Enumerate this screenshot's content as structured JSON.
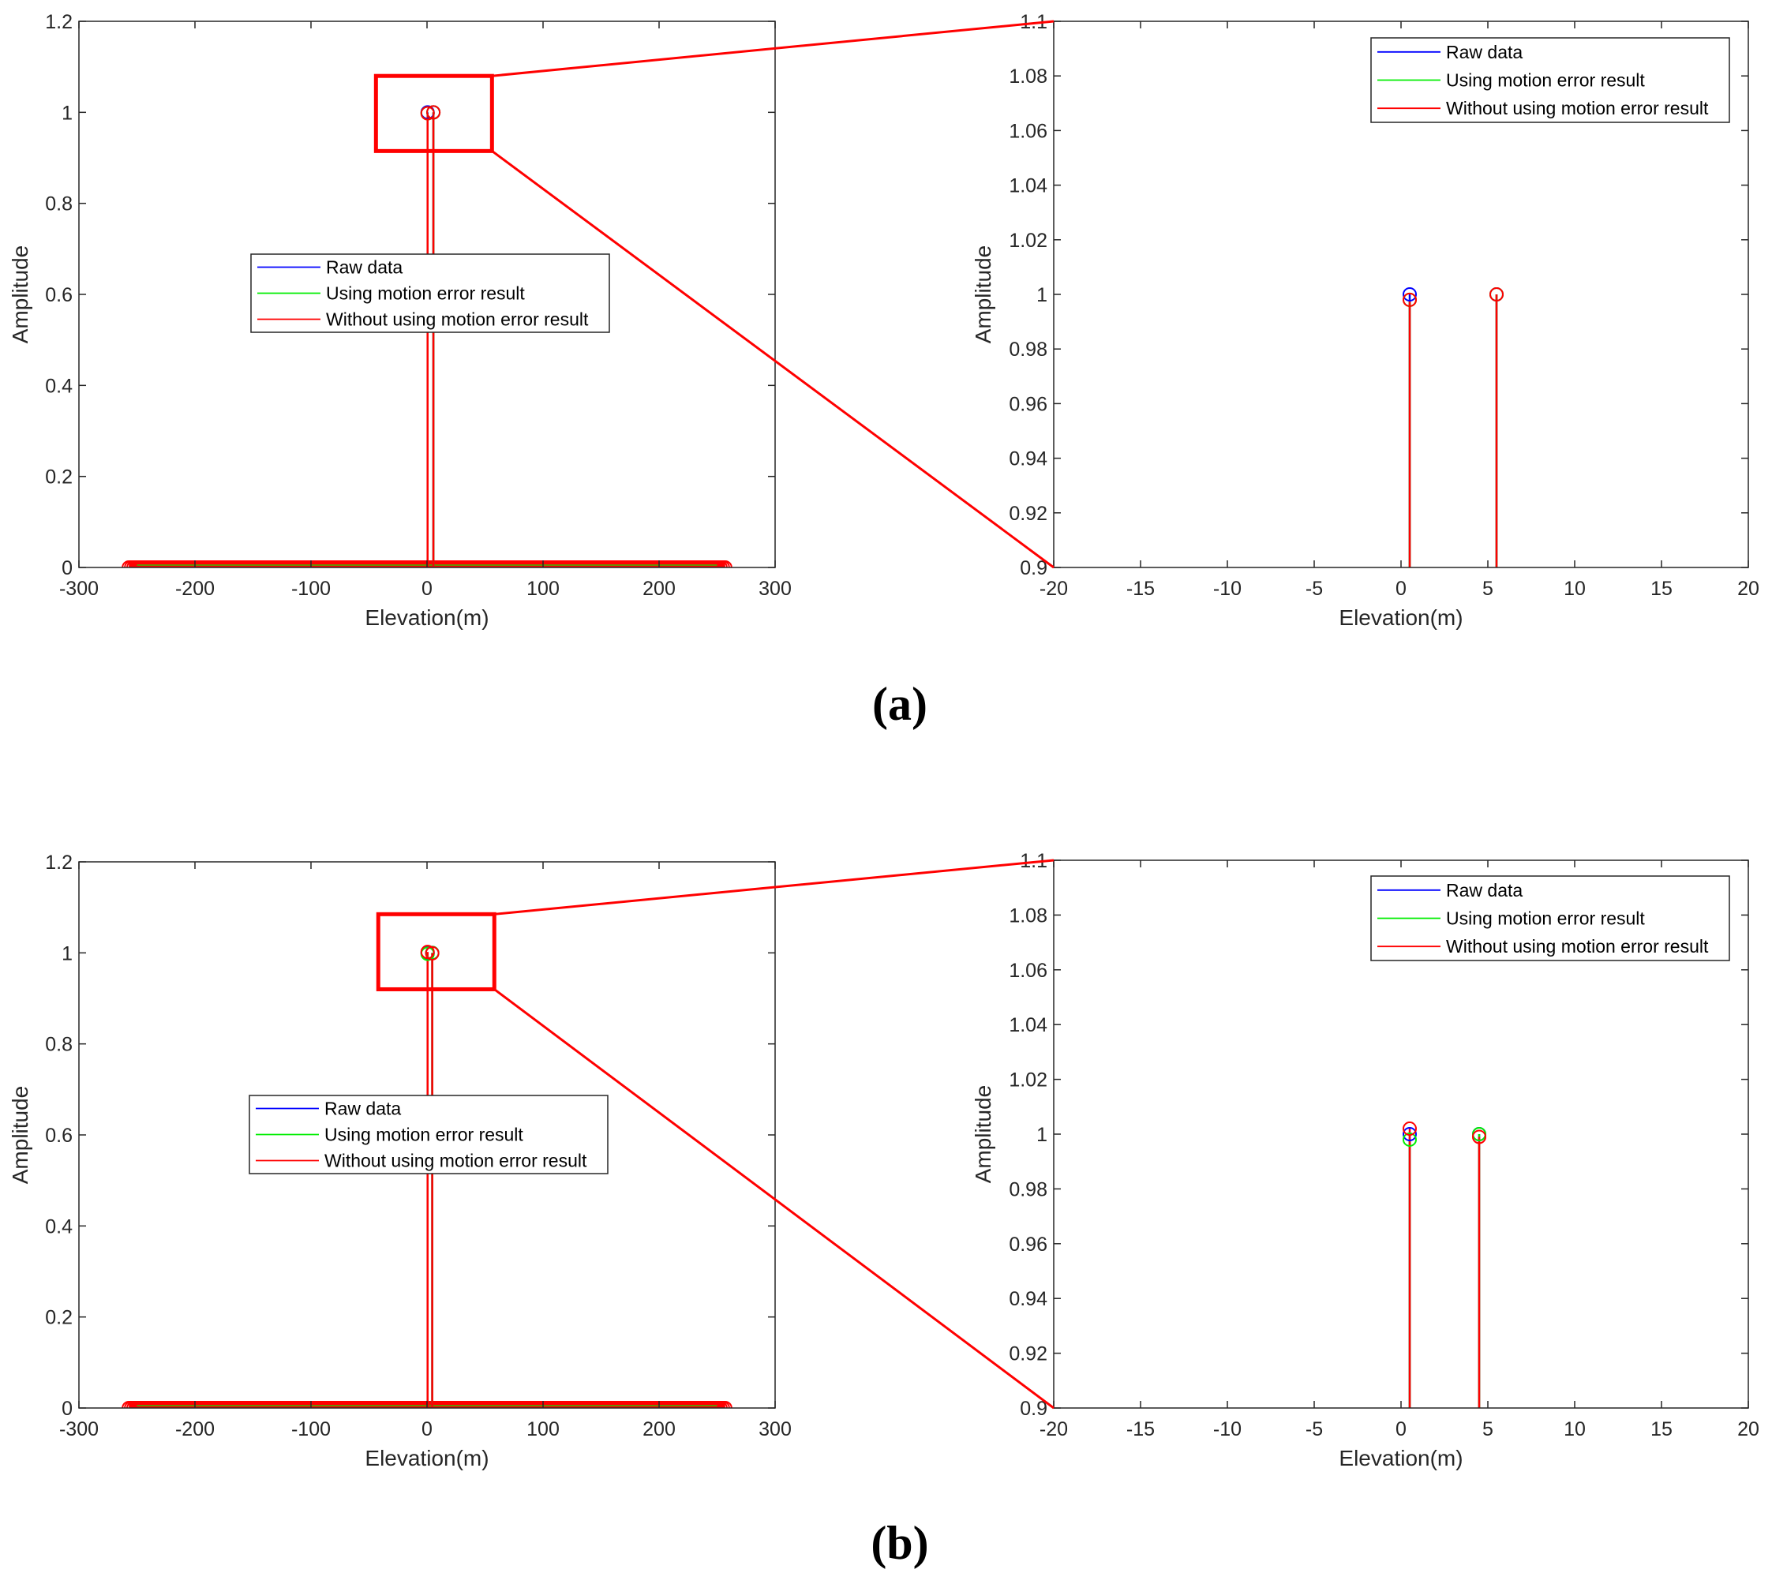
{
  "panel_labels": [
    "(a)",
    "(b)"
  ],
  "colors": {
    "raw": "#0000ff",
    "using": "#00ee00",
    "without": "#ff0000",
    "axis": "#262626",
    "zoom": "#ff0000"
  },
  "chart_data": [
    {
      "panel": "(a)",
      "type": "line",
      "plot": "full",
      "xlabel": "Elevation(m)",
      "ylabel": "Amplitude",
      "xlim": [
        -300,
        300
      ],
      "ylim": [
        0,
        1.2
      ],
      "xticks": [
        "-300",
        "-200",
        "-100",
        "0",
        "100",
        "200",
        "300"
      ],
      "yticks": [
        "0",
        "0.2",
        "0.4",
        "0.6",
        "0.8",
        "1",
        "1.2"
      ],
      "grid": false,
      "legend": "center-left",
      "series": [
        {
          "name": "Raw data",
          "peaks": [
            {
              "x": 0.5,
              "y": 1.0
            },
            {
              "x": 5.5,
              "y": 1.0
            }
          ]
        },
        {
          "name": "Using motion error result",
          "peaks": [
            {
              "x": 0.5,
              "y": 0.998
            },
            {
              "x": 5.5,
              "y": 1.0
            }
          ]
        },
        {
          "name": "Without using motion error result",
          "peaks": [
            {
              "x": 0.5,
              "y": 0.998
            },
            {
              "x": 5.5,
              "y": 1.0
            }
          ]
        }
      ],
      "baseline_markers": {
        "x_range": [
          -257,
          257
        ],
        "y": 0
      },
      "zoom_box": {
        "x": [
          -44,
          56
        ],
        "y": [
          0.915,
          1.08
        ]
      }
    },
    {
      "panel": "(a)",
      "type": "line",
      "plot": "zoom",
      "xlabel": "Elevation(m)",
      "ylabel": "Amplitude",
      "xlim": [
        -20,
        20
      ],
      "ylim": [
        0.9,
        1.1
      ],
      "xticks": [
        "-20",
        "-15",
        "-10",
        "-5",
        "0",
        "5",
        "10",
        "15",
        "20"
      ],
      "yticks": [
        "0.9",
        "0.92",
        "0.94",
        "0.96",
        "0.98",
        "1",
        "1.02",
        "1.04",
        "1.06",
        "1.08",
        "1.1"
      ],
      "grid": false,
      "legend": "top-right",
      "series": [
        {
          "name": "Raw data",
          "peaks": [
            {
              "x": 0.5,
              "y": 1.0
            },
            {
              "x": 5.5,
              "y": 1.0
            }
          ]
        },
        {
          "name": "Using motion error result",
          "peaks": [
            {
              "x": 0.5,
              "y": 0.998
            },
            {
              "x": 5.5,
              "y": 1.0
            }
          ]
        },
        {
          "name": "Without using motion error result",
          "peaks": [
            {
              "x": 0.5,
              "y": 0.998
            },
            {
              "x": 5.5,
              "y": 1.0
            }
          ]
        }
      ]
    },
    {
      "panel": "(b)",
      "type": "line",
      "plot": "full",
      "xlabel": "Elevation(m)",
      "ylabel": "Amplitude",
      "xlim": [
        -300,
        300
      ],
      "ylim": [
        0,
        1.2
      ],
      "xticks": [
        "-300",
        "-200",
        "-100",
        "0",
        "100",
        "200",
        "300"
      ],
      "yticks": [
        "0",
        "0.2",
        "0.4",
        "0.6",
        "0.8",
        "1",
        "1.2"
      ],
      "grid": false,
      "legend": "center-left",
      "series": [
        {
          "name": "Raw data",
          "peaks": [
            {
              "x": 0.5,
              "y": 1.0
            },
            {
              "x": 4.5,
              "y": 1.0
            }
          ]
        },
        {
          "name": "Using motion error result",
          "peaks": [
            {
              "x": 0.5,
              "y": 0.998
            },
            {
              "x": 4.5,
              "y": 1.0
            }
          ]
        },
        {
          "name": "Without using motion error result",
          "peaks": [
            {
              "x": 0.5,
              "y": 1.002
            },
            {
              "x": 4.5,
              "y": 0.999
            }
          ]
        }
      ],
      "baseline_markers": {
        "x_range": [
          -257,
          257
        ],
        "y": 0
      },
      "zoom_box": {
        "x": [
          -42,
          58
        ],
        "y": [
          0.92,
          1.085
        ]
      }
    },
    {
      "panel": "(b)",
      "type": "line",
      "plot": "zoom",
      "xlabel": "Elevation(m)",
      "ylabel": "Amplitude",
      "xlim": [
        -20,
        20
      ],
      "ylim": [
        0.9,
        1.1
      ],
      "xticks": [
        "-20",
        "-15",
        "-10",
        "-5",
        "0",
        "5",
        "10",
        "15",
        "20"
      ],
      "yticks": [
        "0.9",
        "0.92",
        "0.94",
        "0.96",
        "0.98",
        "1",
        "1.02",
        "1.04",
        "1.06",
        "1.08",
        "1.1"
      ],
      "grid": false,
      "legend": "top-right",
      "series": [
        {
          "name": "Raw data",
          "peaks": [
            {
              "x": 0.5,
              "y": 1.0
            },
            {
              "x": 4.5,
              "y": 1.0
            }
          ]
        },
        {
          "name": "Using motion error result",
          "peaks": [
            {
              "x": 0.5,
              "y": 0.998
            },
            {
              "x": 4.5,
              "y": 1.0
            }
          ]
        },
        {
          "name": "Without using motion error result",
          "peaks": [
            {
              "x": 0.5,
              "y": 1.002
            },
            {
              "x": 4.5,
              "y": 0.999
            }
          ]
        }
      ]
    }
  ]
}
